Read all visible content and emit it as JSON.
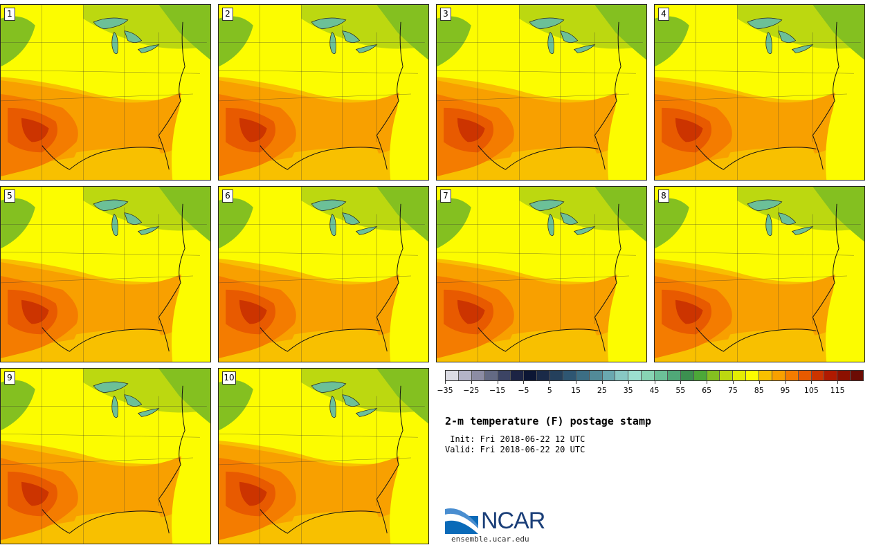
{
  "panels": [
    {
      "label": "1"
    },
    {
      "label": "2"
    },
    {
      "label": "3"
    },
    {
      "label": "4"
    },
    {
      "label": "5"
    },
    {
      "label": "6"
    },
    {
      "label": "7"
    },
    {
      "label": "8"
    },
    {
      "label": "9"
    },
    {
      "label": "10"
    }
  ],
  "colorbar": {
    "colors": [
      "#dcdce4",
      "#b4b4c8",
      "#8c8ca4",
      "#646a84",
      "#3c4464",
      "#1c2444",
      "#0c1634",
      "#1a2a48",
      "#24405c",
      "#2e5672",
      "#3c6e84",
      "#528a98",
      "#6aa8b0",
      "#88c8c4",
      "#9ce0d0",
      "#88d4b4",
      "#6cc098",
      "#50a878",
      "#3c9050",
      "#4ca838",
      "#84c020",
      "#bcd810",
      "#e4ec04",
      "#fcfc00",
      "#f8c000",
      "#f8a000",
      "#f47c00",
      "#e85a00",
      "#cc3400",
      "#b01a00",
      "#8c1000",
      "#6c0c04"
    ],
    "ticks": [
      "−35",
      "−25",
      "−15",
      "−5",
      "5",
      "15",
      "25",
      "35",
      "45",
      "55",
      "65",
      "75",
      "85",
      "95",
      "105",
      "115"
    ]
  },
  "info": {
    "title": "2-m temperature (F) postage stamp",
    "init": " Init: Fri 2018-06-22 12 UTC",
    "valid": "Valid: Fri 2018-06-22 20 UTC"
  },
  "branding": {
    "logo_text": "NCAR",
    "site": "ensemble.ucar.edu"
  }
}
